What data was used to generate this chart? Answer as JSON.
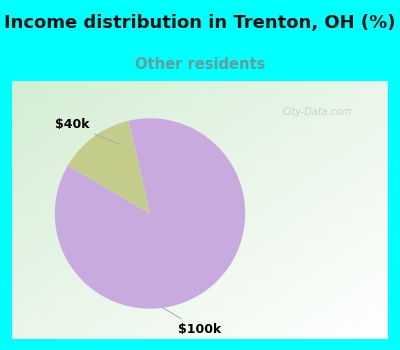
{
  "title": "Income distribution in Trenton, OH (%)",
  "subtitle": "Other residents",
  "slices": [
    {
      "label": "$100k",
      "value": 87,
      "color": "#C9AADF"
    },
    {
      "label": "$40k",
      "value": 13,
      "color": "#C3CC8A"
    }
  ],
  "title_fontsize": 13,
  "subtitle_fontsize": 10.5,
  "subtitle_color": "#6A9A9A",
  "header_bg": "#00FFFF",
  "watermark": "City-Data.com",
  "start_angle": 103,
  "label_fontsize": 9
}
